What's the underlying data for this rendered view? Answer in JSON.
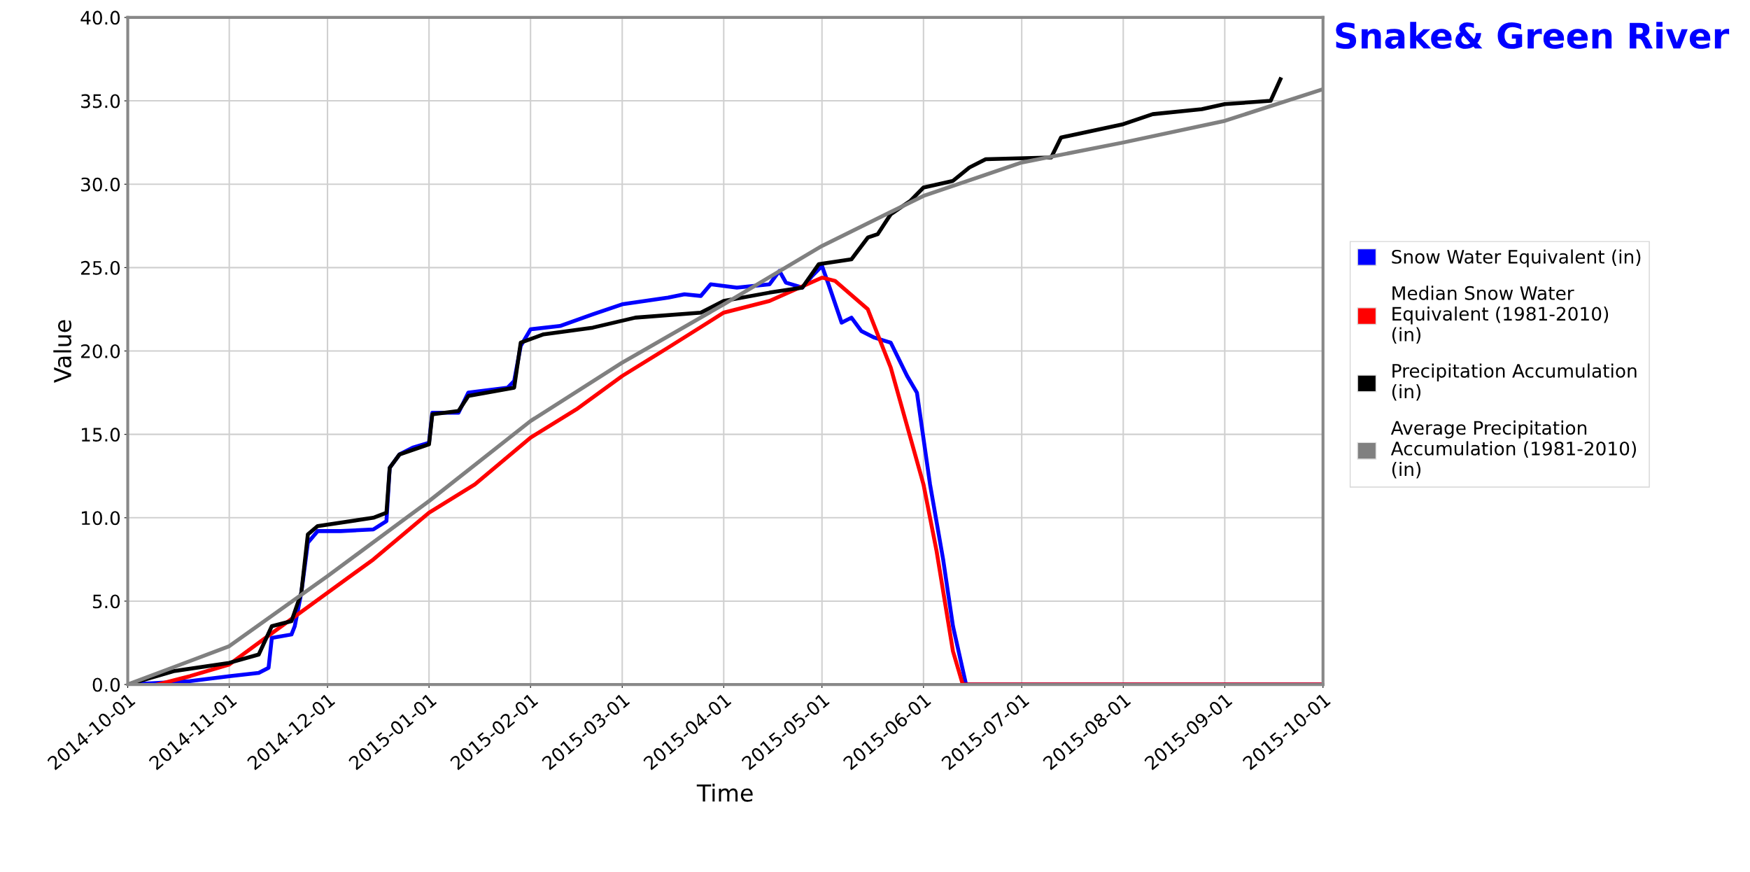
{
  "chart_data": {
    "type": "line",
    "title": "Snake& Green River",
    "xlabel": "Time",
    "ylabel": "Value",
    "xlim": [
      "2014-10-01",
      "2015-10-01"
    ],
    "xticks": [
      "2014-10-01",
      "2014-11-01",
      "2014-12-01",
      "2015-01-01",
      "2015-02-01",
      "2015-03-01",
      "2015-04-01",
      "2015-05-01",
      "2015-06-01",
      "2015-07-01",
      "2015-08-01",
      "2015-09-01",
      "2015-10-01"
    ],
    "ylim": [
      0,
      40
    ],
    "yticks": [
      {
        "value": 0,
        "label": "0.0"
      },
      {
        "value": 5,
        "label": "5.0"
      },
      {
        "value": 10,
        "label": "10.0"
      },
      {
        "value": 15,
        "label": "15.0"
      },
      {
        "value": 20,
        "label": "20.0"
      },
      {
        "value": 25,
        "label": "25.0"
      },
      {
        "value": 30,
        "label": "30.0"
      },
      {
        "value": 35,
        "label": "35.0"
      },
      {
        "value": 40,
        "label": "40.0"
      }
    ],
    "grid": true,
    "legend": "right",
    "marker": "none",
    "line_style": "solid",
    "series": [
      {
        "name": "Snow Water Equivalent (in)",
        "color": "#0000ff",
        "x": [
          "2014-10-01",
          "2014-10-20",
          "2014-11-01",
          "2014-11-10",
          "2014-11-13",
          "2014-11-14",
          "2014-11-20",
          "2014-11-21",
          "2014-11-23",
          "2014-11-25",
          "2014-11-28",
          "2014-12-05",
          "2014-12-15",
          "2014-12-19",
          "2014-12-20",
          "2014-12-23",
          "2014-12-27",
          "2015-01-01",
          "2015-01-02",
          "2015-01-10",
          "2015-01-13",
          "2015-01-25",
          "2015-01-27",
          "2015-01-29",
          "2015-02-01",
          "2015-02-10",
          "2015-02-20",
          "2015-03-01",
          "2015-03-15",
          "2015-03-20",
          "2015-03-25",
          "2015-03-28",
          "2015-04-05",
          "2015-04-15",
          "2015-04-18",
          "2015-04-20",
          "2015-04-25",
          "2015-04-28",
          "2015-05-01",
          "2015-05-03",
          "2015-05-07",
          "2015-05-10",
          "2015-05-13",
          "2015-05-17",
          "2015-05-22",
          "2015-05-27",
          "2015-05-30",
          "2015-06-03",
          "2015-06-07",
          "2015-06-10",
          "2015-06-14",
          "2015-09-30"
        ],
        "values": [
          0,
          0.2,
          0.5,
          0.7,
          1.0,
          2.8,
          3.0,
          3.5,
          5.5,
          8.5,
          9.2,
          9.2,
          9.3,
          9.8,
          13.0,
          13.8,
          14.2,
          14.5,
          16.3,
          16.3,
          17.5,
          17.8,
          18.2,
          20.3,
          21.3,
          21.5,
          22.2,
          22.8,
          23.2,
          23.4,
          23.3,
          24.0,
          23.8,
          24.0,
          24.8,
          24.1,
          23.8,
          24.5,
          25.1,
          24.0,
          21.7,
          22.0,
          21.2,
          20.8,
          20.5,
          18.5,
          17.5,
          12,
          7.5,
          3.5,
          0,
          0
        ]
      },
      {
        "name": "Median Snow Water Equivalent (1981-2010) (in)",
        "color": "#ff0000",
        "x": [
          "2014-10-10",
          "2014-10-20",
          "2014-11-01",
          "2014-11-10",
          "2014-12-01",
          "2014-12-15",
          "2015-01-01",
          "2015-01-15",
          "2015-02-01",
          "2015-02-15",
          "2015-03-01",
          "2015-03-15",
          "2015-04-01",
          "2015-04-15",
          "2015-05-01",
          "2015-05-05",
          "2015-05-15",
          "2015-05-22",
          "2015-06-01",
          "2015-06-05",
          "2015-06-10",
          "2015-06-13",
          "2015-10-01"
        ],
        "values": [
          0,
          0.5,
          1.2,
          2.5,
          5.5,
          7.5,
          10.3,
          12,
          14.8,
          16.5,
          18.5,
          20.2,
          22.3,
          23.0,
          24.4,
          24.2,
          22.5,
          19,
          12,
          8,
          2,
          0,
          0
        ]
      },
      {
        "name": "Precipitation Accumulation (in)",
        "color": "#000000",
        "x": [
          "2014-10-01",
          "2014-10-15",
          "2014-11-01",
          "2014-11-10",
          "2014-11-14",
          "2014-11-20",
          "2014-11-23",
          "2014-11-25",
          "2014-11-28",
          "2014-12-15",
          "2014-12-19",
          "2014-12-20",
          "2014-12-23",
          "2015-01-01",
          "2015-01-02",
          "2015-01-10",
          "2015-01-13",
          "2015-01-27",
          "2015-01-29",
          "2015-02-05",
          "2015-02-20",
          "2015-03-05",
          "2015-03-25",
          "2015-04-01",
          "2015-04-15",
          "2015-04-25",
          "2015-04-30",
          "2015-05-10",
          "2015-05-15",
          "2015-05-18",
          "2015-05-22",
          "2015-05-28",
          "2015-06-01",
          "2015-06-10",
          "2015-06-15",
          "2015-06-20",
          "2015-07-10",
          "2015-07-13",
          "2015-07-25",
          "2015-08-01",
          "2015-08-10",
          "2015-08-25",
          "2015-09-01",
          "2015-09-15",
          "2015-09-18"
        ],
        "values": [
          0,
          0.8,
          1.3,
          1.8,
          3.5,
          3.8,
          5.5,
          9.0,
          9.5,
          10.0,
          10.3,
          13,
          13.8,
          14.4,
          16.2,
          16.4,
          17.3,
          17.8,
          20.5,
          21.0,
          21.4,
          22.0,
          22.3,
          23.0,
          23.5,
          23.8,
          25.2,
          25.5,
          26.8,
          27.0,
          28.2,
          29.0,
          29.8,
          30.2,
          31.0,
          31.5,
          31.6,
          32.8,
          33.3,
          33.6,
          34.2,
          34.5,
          34.8,
          35.0,
          36.3
        ]
      },
      {
        "name": "Average Precipitation Accumulation (1981-2010) (in)",
        "color": "#808080",
        "x": [
          "2014-10-01",
          "2014-11-01",
          "2014-12-01",
          "2015-01-01",
          "2015-02-01",
          "2015-03-01",
          "2015-04-01",
          "2015-05-01",
          "2015-06-01",
          "2015-07-01",
          "2015-08-01",
          "2015-09-01",
          "2015-10-01"
        ],
        "values": [
          0,
          2.3,
          6.5,
          11.0,
          15.8,
          19.3,
          22.8,
          26.3,
          29.3,
          31.3,
          32.5,
          33.8,
          35.7
        ]
      }
    ]
  }
}
